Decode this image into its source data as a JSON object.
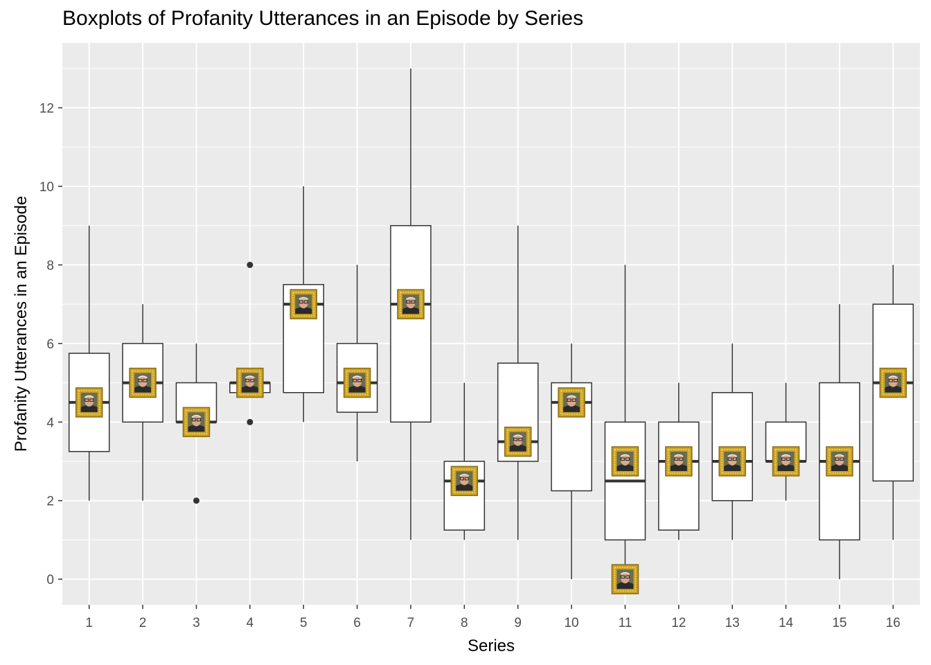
{
  "chart_data": {
    "type": "boxplot",
    "title": "Boxplots of Profanity Utterances in an Episode by Series",
    "xlabel": "Series",
    "ylabel": "Profanity Utterances in an Episode",
    "ylim": [
      -0.65,
      13.65
    ],
    "yticks": [
      0,
      2,
      4,
      6,
      8,
      10,
      12
    ],
    "grid": true,
    "legend": "none",
    "colors": {
      "panel": "#ebebeb",
      "grid": "#ffffff",
      "box_fill": "#ffffff",
      "box_line": "#333333",
      "frame_gold": "#c9a227",
      "frame_dark": "#8a6a12",
      "photo_bg": "#6b6b4e",
      "photo_face": "#d7a98c",
      "photo_shirt": "#2a2a2a"
    },
    "categories": [
      "1",
      "2",
      "3",
      "4",
      "5",
      "6",
      "7",
      "8",
      "9",
      "10",
      "11",
      "12",
      "13",
      "14",
      "15",
      "16"
    ],
    "boxes": [
      {
        "series": "1",
        "min": 2,
        "q1": 3.25,
        "median": 4.5,
        "q3": 5.75,
        "max": 9,
        "outliers": [],
        "mean": 4.5
      },
      {
        "series": "2",
        "min": 2,
        "q1": 4,
        "median": 5,
        "q3": 6,
        "max": 7,
        "outliers": [],
        "mean": 5
      },
      {
        "series": "3",
        "min": 4,
        "q1": 4,
        "median": 4,
        "q3": 5,
        "max": 6,
        "outliers": [
          2
        ],
        "mean": 4
      },
      {
        "series": "4",
        "min": 4.75,
        "q1": 4.75,
        "median": 5,
        "q3": 5,
        "max": 5,
        "outliers": [
          8,
          4
        ],
        "mean": 5
      },
      {
        "series": "5",
        "min": 4,
        "q1": 4.75,
        "median": 7,
        "q3": 7.5,
        "max": 10,
        "outliers": [],
        "mean": 7
      },
      {
        "series": "6",
        "min": 3,
        "q1": 4.25,
        "median": 5,
        "q3": 6,
        "max": 8,
        "outliers": [],
        "mean": 5
      },
      {
        "series": "7",
        "min": 1,
        "q1": 4,
        "median": 7,
        "q3": 9,
        "max": 13,
        "outliers": [],
        "mean": 7
      },
      {
        "series": "8",
        "min": 1,
        "q1": 1.25,
        "median": 2.5,
        "q3": 3,
        "max": 5,
        "outliers": [],
        "mean": 2.5
      },
      {
        "series": "9",
        "min": 1,
        "q1": 3,
        "median": 3.5,
        "q3": 5.5,
        "max": 9,
        "outliers": [],
        "mean": 3.5
      },
      {
        "series": "10",
        "min": 0,
        "q1": 2.25,
        "median": 4.5,
        "q3": 5,
        "max": 6,
        "outliers": [],
        "mean": 4.5
      },
      {
        "series": "11",
        "min": 0,
        "q1": 1,
        "median": 2.5,
        "q3": 4,
        "max": 8,
        "outliers": [],
        "mean": 3,
        "extra_marker": 0
      },
      {
        "series": "12",
        "min": 1,
        "q1": 1.25,
        "median": 3,
        "q3": 4,
        "max": 5,
        "outliers": [],
        "mean": 3
      },
      {
        "series": "13",
        "min": 1,
        "q1": 2,
        "median": 3,
        "q3": 4.75,
        "max": 6,
        "outliers": [],
        "mean": 3
      },
      {
        "series": "14",
        "min": 2,
        "q1": 3,
        "median": 3,
        "q3": 4,
        "max": 5,
        "outliers": [],
        "mean": 3
      },
      {
        "series": "15",
        "min": 0,
        "q1": 1,
        "median": 3,
        "q3": 5,
        "max": 7,
        "outliers": [],
        "mean": 3
      },
      {
        "series": "16",
        "min": 1,
        "q1": 2.5,
        "median": 5,
        "q3": 7,
        "max": 8,
        "outliers": [],
        "mean": 5
      }
    ],
    "marker_icon": "framed-portrait-icon"
  }
}
